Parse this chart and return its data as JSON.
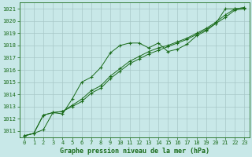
{
  "title": "Graphe pression niveau de la mer (hPa)",
  "bg_color": "#c8e8e8",
  "line_color": "#1a6b1a",
  "grid_color": "#a8c8c8",
  "ylim": [
    1010.5,
    1021.5
  ],
  "xlim": [
    -0.5,
    23.5
  ],
  "yticks": [
    1011,
    1012,
    1013,
    1014,
    1015,
    1016,
    1017,
    1018,
    1019,
    1020,
    1021
  ],
  "xticks": [
    0,
    1,
    2,
    3,
    4,
    5,
    6,
    7,
    8,
    9,
    10,
    11,
    12,
    13,
    14,
    15,
    16,
    17,
    18,
    19,
    20,
    21,
    22,
    23
  ],
  "series": [
    {
      "x": [
        0,
        1,
        2,
        3,
        4,
        5,
        6,
        7,
        8,
        9,
        10,
        11,
        12,
        13,
        14,
        15,
        16,
        17,
        18,
        19,
        20,
        21,
        22,
        23
      ],
      "y": [
        1010.6,
        1010.8,
        1011.1,
        1012.5,
        1012.4,
        1013.6,
        1015.0,
        1015.4,
        1016.2,
        1017.4,
        1018.0,
        1018.2,
        1018.2,
        1017.8,
        1018.2,
        1017.5,
        1017.7,
        1018.1,
        1018.8,
        1019.2,
        1019.8,
        1021.0,
        1021.0,
        1021.1
      ]
    },
    {
      "x": [
        0,
        1,
        2,
        3,
        4,
        5,
        6,
        7,
        8,
        9,
        10,
        11,
        12,
        13,
        14,
        15,
        16,
        17,
        18,
        19,
        20,
        21,
        22,
        23
      ],
      "y": [
        1010.6,
        1010.8,
        1012.3,
        1012.5,
        1012.6,
        1013.1,
        1013.6,
        1014.3,
        1014.7,
        1015.5,
        1016.1,
        1016.7,
        1017.1,
        1017.5,
        1017.8,
        1018.0,
        1018.3,
        1018.6,
        1019.0,
        1019.4,
        1019.9,
        1020.5,
        1021.0,
        1021.1
      ]
    },
    {
      "x": [
        0,
        1,
        2,
        3,
        4,
        5,
        6,
        7,
        8,
        9,
        10,
        11,
        12,
        13,
        14,
        15,
        16,
        17,
        18,
        19,
        20,
        21,
        22,
        23
      ],
      "y": [
        1010.6,
        1010.8,
        1012.3,
        1012.5,
        1012.6,
        1013.0,
        1013.4,
        1014.1,
        1014.5,
        1015.3,
        1015.9,
        1016.5,
        1016.9,
        1017.3,
        1017.6,
        1017.9,
        1018.2,
        1018.5,
        1018.9,
        1019.3,
        1019.8,
        1020.3,
        1020.9,
        1021.0
      ]
    }
  ]
}
